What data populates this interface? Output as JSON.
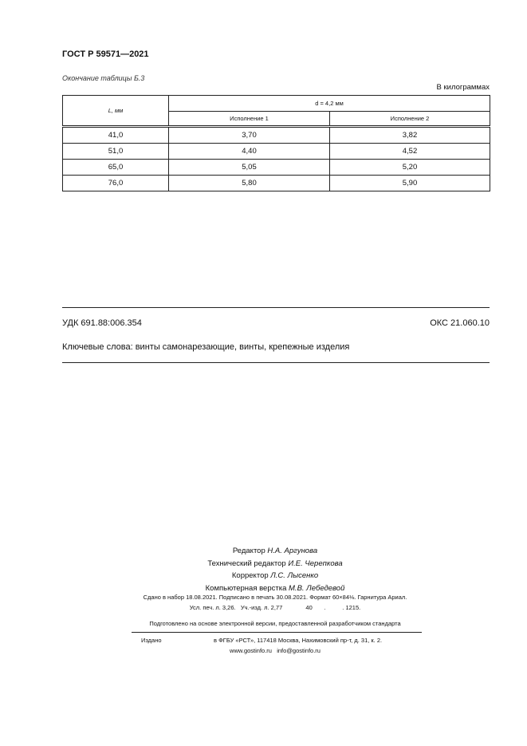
{
  "header": {
    "doc_number": "ГОСТ Р 59571—2021"
  },
  "table": {
    "caption": "Окончание таблицы Б.3",
    "unit_note": "В килограммах",
    "col_L": "L, мм",
    "col_group": "d = 4,2 мм",
    "col_1": "Исполнение 1",
    "col_2": "Исполнение 2",
    "rows": [
      [
        "41,0",
        "3,70",
        "3,82"
      ],
      [
        "51,0",
        "4,40",
        "4,52"
      ],
      [
        "65,0",
        "5,05",
        "5,20"
      ],
      [
        "76,0",
        "5,80",
        "5,90"
      ]
    ]
  },
  "classification": {
    "udk": "УДК 691.88:006.354",
    "oks": "ОКС 21.060.10",
    "keywords": "Ключевые слова: винты самонарезающие, винты, крепежные изделия"
  },
  "credits": [
    {
      "role": "Редактор",
      "name": "Н.А. Аргунова"
    },
    {
      "role": "Технический редактор",
      "name": "И.Е. Черепкова"
    },
    {
      "role": "Корректор",
      "name": "Л.С. Лысенко"
    },
    {
      "role": "Компьютерная верстка",
      "name": "М.В. Лебедевой"
    }
  ],
  "imprint": {
    "line1": "Сдано в набор 18.08.2021.   Подписано в печать 30.08.2021.   Формат 60×84⅛.   Гарнитура Ариал.",
    "line2": "Усл. печ. л. 3,26.   Уч.-изд. л. 2,77              40       .          . 1215.",
    "prepared": "Подготовлено на основе электронной версии, предоставленной разработчиком стандарта",
    "published_label": "Издано",
    "publisher": "в ФГБУ «РСТ», 117418 Москва, Нахимовский пр-т, д. 31, к. 2.",
    "contacts": "www.gostinfo.ru   info@gostinfo.ru"
  }
}
